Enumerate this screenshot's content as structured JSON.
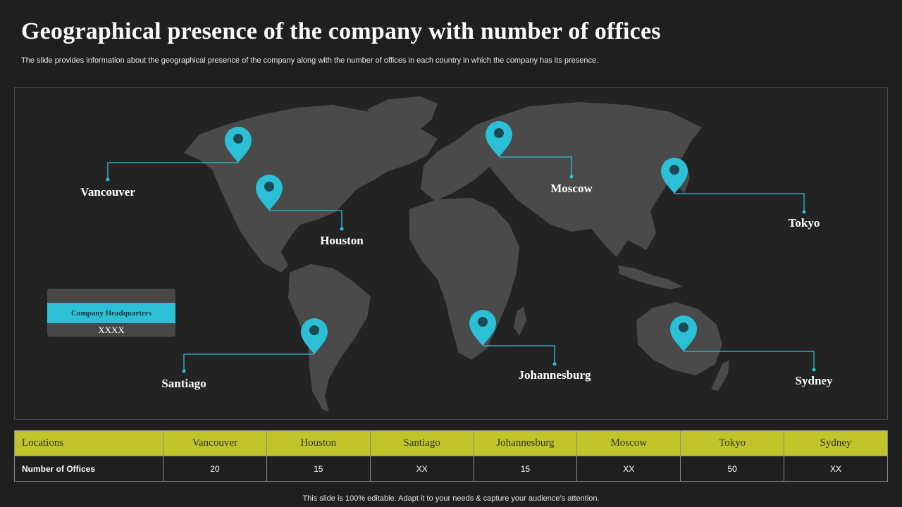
{
  "header": {
    "title": "Geographical presence of the company with number of offices",
    "subtitle": "The slide provides information about the geographical presence of the company along with the number of offices in each country in which the company has its presence."
  },
  "map": {
    "cities": [
      "Vancouver",
      "Houston",
      "Santiago",
      "Johannesburg",
      "Moscow",
      "Tokyo",
      "Sydney"
    ],
    "pin_color": "#2cc0d6",
    "land_color": "#4a4a4a"
  },
  "hq": {
    "label": "Company Headquarters",
    "value": "XXXX"
  },
  "table": {
    "header_color": "#c0c428",
    "row_label_header": "Locations",
    "row_label": "Number of Offices",
    "columns": [
      "Vancouver",
      "Houston",
      "Santiago",
      "Johannesburg",
      "Moscow",
      "Tokyo",
      "Sydney"
    ],
    "values": [
      "20",
      "15",
      "XX",
      "15",
      "XX",
      "50",
      "XX"
    ]
  },
  "footer": "This slide is 100% editable. Adapt it to your needs & capture your audience’s attention."
}
